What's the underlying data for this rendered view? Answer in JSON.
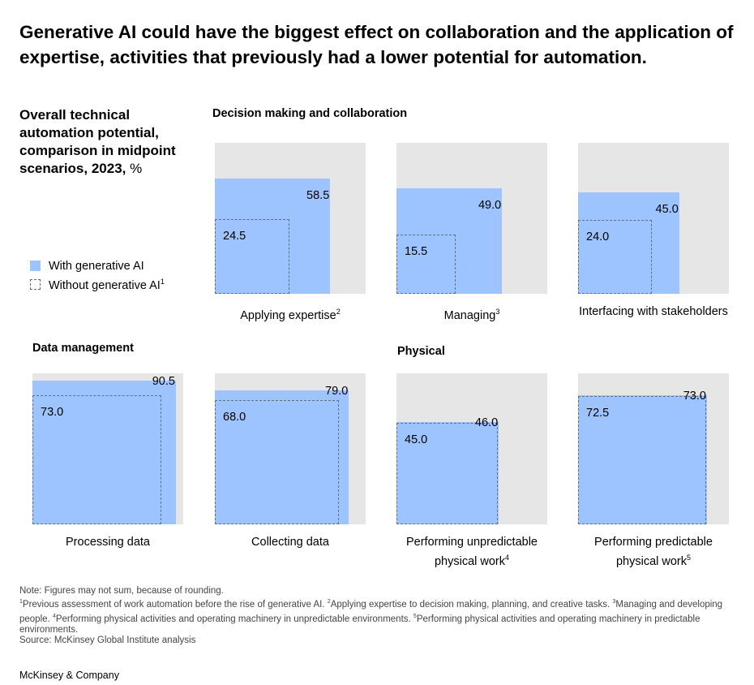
{
  "header": {
    "title": "Generative AI could have the biggest effect on collaboration and the application of expertise, activities that previously had a lower potential for automation.",
    "subtitle": "Overall technical automation potential, comparison in midpoint scenarios, 2023,",
    "unit": "%"
  },
  "legend": {
    "with_label": "With generative AI",
    "without_label": "Without generative AI",
    "without_sup": "1"
  },
  "sections": {
    "decision": "Decision making and collaboration",
    "data": "Data management",
    "physical": "Physical"
  },
  "colors": {
    "with": "#9dc4ff",
    "panel_bg": "#e6e6e6"
  },
  "chart_data": {
    "type": "bar",
    "title": "Overall technical automation potential, comparison in midpoint scenarios, 2023, %",
    "ylim": [
      0,
      100
    ],
    "series": [
      {
        "name": "With generative AI",
        "values": [
          58.5,
          49.0,
          45.0,
          90.5,
          79.0,
          46.0,
          73.0
        ]
      },
      {
        "name": "Without generative AI",
        "values": [
          24.5,
          15.5,
          24.0,
          73.0,
          68.0,
          45.0,
          72.5
        ]
      }
    ],
    "panels": [
      {
        "label": "Applying expertise",
        "sup": "2",
        "with": 58.5,
        "without": 24.5,
        "with_text": "58.5",
        "without_text": "24.5",
        "group": "Decision making and collaboration"
      },
      {
        "label": "Managing",
        "sup": "3",
        "with": 49.0,
        "without": 15.5,
        "with_text": "49.0",
        "without_text": "15.5",
        "group": "Decision making and collaboration"
      },
      {
        "label": "Interfacing with stakeholders",
        "sup": "",
        "with": 45.0,
        "without": 24.0,
        "with_text": "45.0",
        "without_text": "24.0",
        "group": "Decision making and collaboration"
      },
      {
        "label": "Processing data",
        "sup": "",
        "with": 90.5,
        "without": 73.0,
        "with_text": "90.5",
        "without_text": "73.0",
        "group": "Data management"
      },
      {
        "label": "Collecting data",
        "sup": "",
        "with": 79.0,
        "without": 68.0,
        "with_text": "79.0",
        "without_text": "68.0",
        "group": "Data management"
      },
      {
        "label": "Performing unpredictable physical work",
        "sup": "4",
        "with": 46.0,
        "without": 45.0,
        "with_text": "46.0",
        "without_text": "45.0",
        "group": "Physical"
      },
      {
        "label": "Performing predictable physical work",
        "sup": "5",
        "with": 73.0,
        "without": 72.5,
        "with_text": "73.0",
        "without_text": "72.5",
        "group": "Physical"
      }
    ]
  },
  "notes": {
    "note": "Note: Figures may not sum, because of rounding.",
    "fn1": "Previous assessment of work automation before the rise of generative AI.",
    "fn2": "Applying expertise to decision making, planning, and creative tasks.",
    "fn3": "Managing and developing people.",
    "fn4": "Performing physical activities and operating machinery in unpredictable environments.",
    "fn5": "Performing physical activities and operating machinery in predictable environments.",
    "source": "Source: McKinsey Global Institute analysis"
  },
  "brand": "McKinsey & Company"
}
